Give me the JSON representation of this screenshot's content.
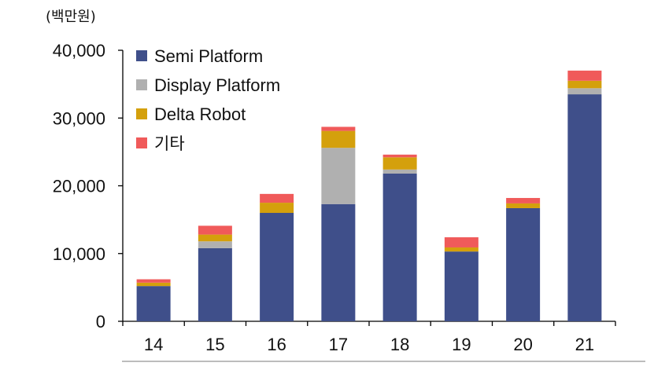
{
  "chart_data": {
    "type": "bar",
    "stacked": true,
    "unit_label": "(백만원)",
    "categories": [
      "14",
      "15",
      "16",
      "17",
      "18",
      "19",
      "20",
      "21"
    ],
    "series": [
      {
        "name": "Semi Platform",
        "color": "#3f4f8a",
        "values": [
          5200,
          10800,
          16000,
          17300,
          21800,
          10300,
          16700,
          33500
        ]
      },
      {
        "name": "Display Platform",
        "color": "#b0b0b0",
        "values": [
          0,
          1000,
          0,
          8300,
          600,
          0,
          0,
          900
        ]
      },
      {
        "name": "Delta Robot",
        "color": "#d4a00c",
        "values": [
          500,
          1000,
          1500,
          2500,
          1800,
          600,
          700,
          1100
        ]
      },
      {
        "name": "기타",
        "color": "#f05a5a",
        "values": [
          500,
          1300,
          1300,
          600,
          400,
          1500,
          800,
          1500
        ]
      }
    ],
    "y_ticks": [
      "0",
      "10,000",
      "20,000",
      "30,000",
      "40,000"
    ],
    "y_tick_values": [
      0,
      10000,
      20000,
      30000,
      40000
    ],
    "ylim": [
      0,
      40000
    ],
    "legend_position": "top-left"
  }
}
